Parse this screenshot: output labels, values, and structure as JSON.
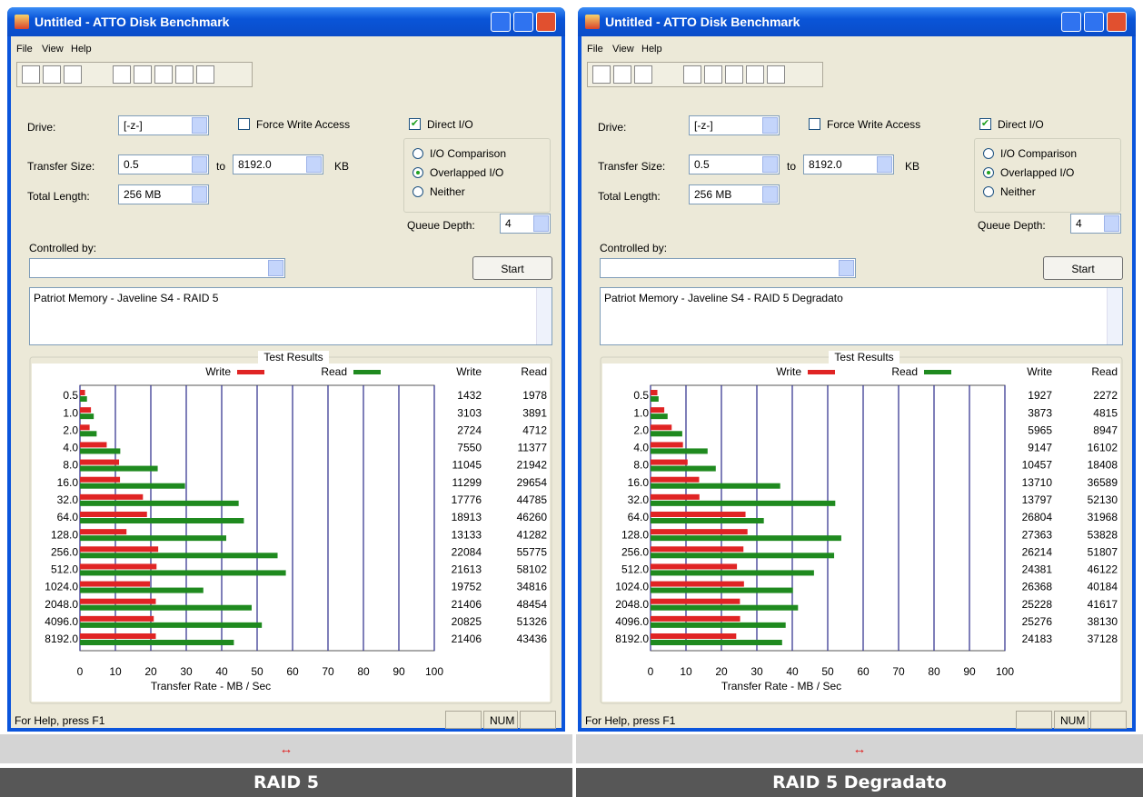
{
  "window": {
    "title": "Untitled - ATTO Disk Benchmark",
    "menu": [
      "File",
      "View",
      "Help"
    ],
    "drive_label": "Drive:",
    "drive": "[-z-]",
    "force_write": "Force Write Access",
    "direct_io": "Direct I/O",
    "transfer_size_label": "Transfer Size:",
    "transfer_from": "0.5",
    "to": "to",
    "transfer_to": "8192.0",
    "kb": "KB",
    "io_modes": [
      "I/O Comparison",
      "Overlapped I/O",
      "Neither"
    ],
    "total_length_label": "Total Length:",
    "total_length": "256 MB",
    "queue_depth_label": "Queue Depth:",
    "queue_depth": "4",
    "controlled_by": "Controlled by:",
    "start": "Start",
    "results_title": "Test Results",
    "status": "For Help, press F1",
    "num": "NUM"
  },
  "panels": [
    {
      "description": "Patriot Memory - Javeline S4 - RAID 5",
      "caption_arrow": "↔",
      "caption": "RAID 5",
      "chart": {
        "type": "bar",
        "x_label": "Transfer Rate - MB / Sec",
        "categories": [
          "0.5",
          "1.0",
          "2.0",
          "4.0",
          "8.0",
          "16.0",
          "32.0",
          "64.0",
          "128.0",
          "256.0",
          "512.0",
          "1024.0",
          "2048.0",
          "4096.0",
          "8192.0"
        ],
        "series": [
          {
            "name": "Write",
            "color": "#e02424",
            "values": [
              1432,
              3103,
              2724,
              7550,
              11045,
              11299,
              17776,
              18913,
              13133,
              22084,
              21613,
              19752,
              21406,
              20825,
              21406
            ]
          },
          {
            "name": "Read",
            "color": "#1f8a1f",
            "values": [
              1978,
              3891,
              4712,
              11377,
              21942,
              29654,
              44785,
              46260,
              41282,
              55775,
              58102,
              34816,
              48454,
              51326,
              43436
            ]
          }
        ],
        "xlim": [
          0,
          100000
        ],
        "xticks": [
          0,
          {
            "value": 10000,
            "label": "10"
          },
          {
            "value": 20000,
            "label": "20"
          },
          {
            "value": 30000,
            "label": "30"
          },
          {
            "value": 40000,
            "label": "40"
          },
          {
            "value": 50000,
            "label": "50"
          },
          {
            "value": 60000,
            "label": "60"
          },
          {
            "value": 70000,
            "label": "70"
          },
          {
            "value": 80000,
            "label": "80"
          },
          {
            "value": 90000,
            "label": "90"
          },
          {
            "value": 100000,
            "label": "100"
          }
        ],
        "grid": true
      }
    },
    {
      "description": "Patriot Memory - Javeline S4 - RAID 5 Degradato",
      "caption_arrow": "↔",
      "caption": "RAID 5 Degradato",
      "chart": {
        "type": "bar",
        "x_label": "Transfer Rate - MB / Sec",
        "categories": [
          "0.5",
          "1.0",
          "2.0",
          "4.0",
          "8.0",
          "16.0",
          "32.0",
          "64.0",
          "128.0",
          "256.0",
          "512.0",
          "1024.0",
          "2048.0",
          "4096.0",
          "8192.0"
        ],
        "series": [
          {
            "name": "Write",
            "color": "#e02424",
            "values": [
              1927,
              3873,
              5965,
              9147,
              10457,
              13710,
              13797,
              26804,
              27363,
              26214,
              24381,
              26368,
              25228,
              25276,
              24183
            ]
          },
          {
            "name": "Read",
            "color": "#1f8a1f",
            "values": [
              2272,
              4815,
              8947,
              16102,
              18408,
              36589,
              52130,
              31968,
              53828,
              51807,
              46122,
              40184,
              41617,
              38130,
              37128
            ]
          }
        ],
        "xlim": [
          0,
          100000
        ],
        "xticks": [
          0,
          {
            "value": 10000,
            "label": "10"
          },
          {
            "value": 20000,
            "label": "20"
          },
          {
            "value": 30000,
            "label": "30"
          },
          {
            "value": 40000,
            "label": "40"
          },
          {
            "value": 50000,
            "label": "50"
          },
          {
            "value": 60000,
            "label": "60"
          },
          {
            "value": 70000,
            "label": "70"
          },
          {
            "value": 80000,
            "label": "80"
          },
          {
            "value": 90000,
            "label": "90"
          },
          {
            "value": 100000,
            "label": "100"
          }
        ],
        "grid": true
      }
    }
  ]
}
